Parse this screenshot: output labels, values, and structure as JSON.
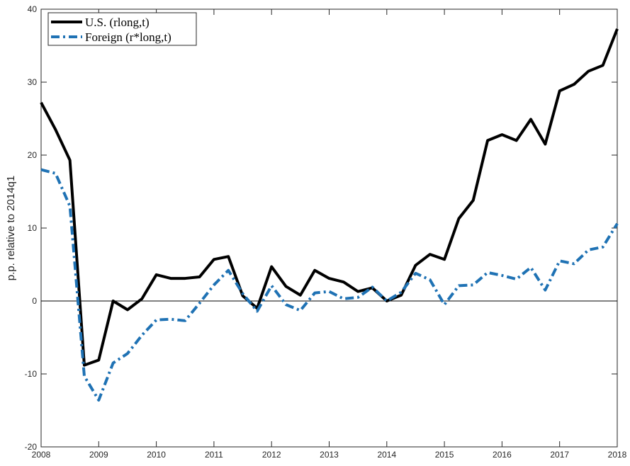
{
  "chart_data": {
    "type": "line",
    "ylabel": "p.p. relative to 2014q1",
    "x": [
      2008,
      2008.25,
      2008.5,
      2008.75,
      2009,
      2009.25,
      2009.5,
      2009.75,
      2010,
      2010.25,
      2010.5,
      2010.75,
      2011,
      2011.25,
      2011.5,
      2011.75,
      2012,
      2012.25,
      2012.5,
      2012.75,
      2013,
      2013.25,
      2013.5,
      2013.75,
      2014,
      2014.25,
      2014.5,
      2014.75,
      2015,
      2015.25,
      2015.5,
      2015.75,
      2016,
      2016.25,
      2016.5,
      2016.75,
      2017,
      2017.25,
      2017.5,
      2017.75,
      2018
    ],
    "series": [
      {
        "name": "U.S. (rlong,t)",
        "color": "#000000",
        "dash": "solid",
        "values": [
          27.2,
          23.5,
          19.3,
          -8.8,
          -8.1,
          0.0,
          -1.2,
          0.3,
          3.6,
          3.1,
          3.1,
          3.3,
          5.7,
          6.1,
          0.7,
          -1.0,
          4.7,
          2.0,
          0.8,
          4.2,
          3.1,
          2.6,
          1.3,
          1.8,
          0.0,
          0.8,
          4.9,
          6.4,
          5.7,
          11.3,
          13.8,
          22.0,
          22.8,
          22.0,
          24.9,
          21.5,
          28.8,
          29.7,
          31.5,
          32.3,
          37.3
        ]
      },
      {
        "name": "Foreign (r*long,t)",
        "color": "#1f72b4",
        "dash": "dashdot",
        "values": [
          18.0,
          17.5,
          13.0,
          -10.3,
          -13.6,
          -8.5,
          -7.2,
          -4.7,
          -2.6,
          -2.5,
          -2.7,
          -0.3,
          2.2,
          4.2,
          1.0,
          -1.4,
          2.1,
          -0.5,
          -1.3,
          1.1,
          1.3,
          0.3,
          0.5,
          1.9,
          0.0,
          1.2,
          3.8,
          2.9,
          -0.5,
          2.1,
          2.2,
          3.9,
          3.5,
          3.0,
          4.6,
          1.5,
          5.5,
          5.1,
          7.0,
          7.4,
          10.6
        ]
      }
    ],
    "reference_line": 0,
    "xlim": [
      2008,
      2018
    ],
    "xticks": [
      2008,
      2009,
      2010,
      2011,
      2012,
      2013,
      2014,
      2015,
      2016,
      2017,
      2018
    ],
    "ylim": [
      -20,
      40
    ],
    "yticks": [
      -20,
      -10,
      0,
      10,
      20,
      30,
      40
    ],
    "legend": "upper left"
  }
}
